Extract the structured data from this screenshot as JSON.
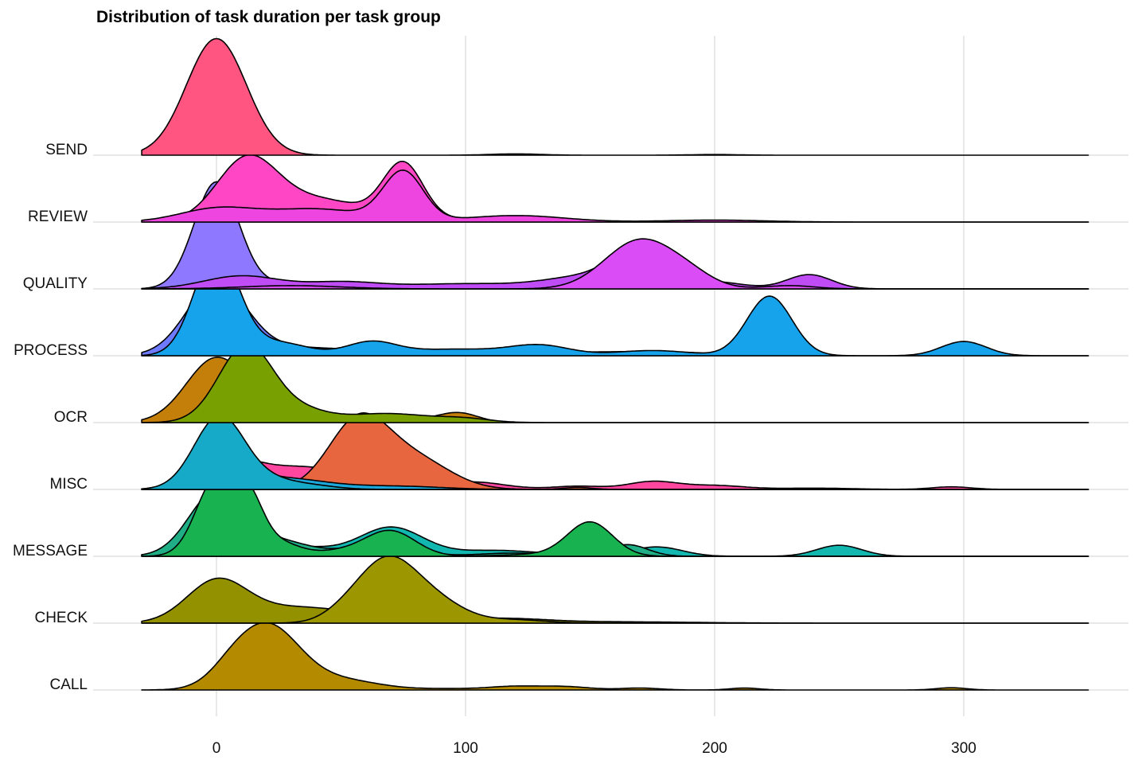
{
  "chart_data": {
    "type": "ridgeline",
    "title": "Distribution of task duration per task group",
    "xlabel": "",
    "ylabel": "",
    "xlim": [
      -30,
      350
    ],
    "x_ticks": [
      0,
      100,
      200,
      300
    ],
    "grid": true,
    "legend": "none",
    "groups": [
      "SEND",
      "REVIEW",
      "QUALITY",
      "PROCESS",
      "OCR",
      "MISC",
      "MESSAGE",
      "CHECK",
      "CALL"
    ],
    "densities": [
      {
        "group": "CALL",
        "color": "#B38A00",
        "components": [
          [
            20,
            13,
            1.0
          ],
          [
            50,
            15,
            0.15
          ],
          [
            5,
            8,
            0.12
          ],
          [
            120,
            10,
            0.05
          ],
          [
            140,
            10,
            0.05
          ],
          [
            170,
            8,
            0.03
          ],
          [
            212,
            6,
            0.03
          ],
          [
            295,
            6,
            0.035
          ],
          [
            95,
            15,
            0.02
          ]
        ]
      },
      {
        "group": "CHECK",
        "color": "#949100",
        "components": [
          [
            0,
            12,
            0.62
          ],
          [
            30,
            20,
            0.2
          ],
          [
            70,
            30,
            0.1
          ],
          [
            120,
            15,
            0.04
          ],
          [
            160,
            30,
            0.02
          ]
        ]
      },
      {
        "group": "CHECK",
        "color": "#9C9700",
        "components": [
          [
            68,
            12,
            0.95
          ],
          [
            88,
            12,
            0.3
          ],
          [
            50,
            8,
            0.08
          ],
          [
            120,
            12,
            0.05
          ]
        ]
      },
      {
        "group": "MESSAGE",
        "color": "#12B8B0",
        "components": [
          [
            0,
            12,
            0.55
          ],
          [
            20,
            12,
            0.15
          ],
          [
            70,
            13,
            0.45
          ],
          [
            40,
            10,
            0.08
          ],
          [
            110,
            15,
            0.08
          ],
          [
            177,
            10,
            0.14
          ],
          [
            250,
            9,
            0.17
          ],
          [
            140,
            20,
            0.03
          ]
        ]
      },
      {
        "group": "MESSAGE",
        "color": "#1FAE85",
        "components": [
          [
            0,
            11,
            1.0
          ],
          [
            25,
            12,
            0.22
          ],
          [
            60,
            15,
            0.1
          ],
          [
            70,
            10,
            0.15
          ],
          [
            120,
            15,
            0.05
          ],
          [
            165,
            8,
            0.18
          ]
        ]
      },
      {
        "group": "MESSAGE",
        "color": "#18B350",
        "components": [
          [
            0,
            8,
            1.2
          ],
          [
            13,
            6,
            0.75
          ],
          [
            25,
            8,
            0.2
          ],
          [
            70,
            10,
            0.38
          ],
          [
            50,
            12,
            0.08
          ],
          [
            150,
            9,
            0.52
          ],
          [
            130,
            15,
            0.03
          ]
        ]
      },
      {
        "group": "MISC",
        "color": "#FF47A0",
        "components": [
          [
            5,
            10,
            0.3
          ],
          [
            25,
            20,
            0.25
          ],
          [
            55,
            25,
            0.18
          ],
          [
            105,
            12,
            0.09
          ],
          [
            145,
            10,
            0.05
          ],
          [
            175,
            10,
            0.12
          ],
          [
            200,
            12,
            0.06
          ],
          [
            240,
            15,
            0.02
          ],
          [
            295,
            8,
            0.04
          ]
        ]
      },
      {
        "group": "MISC",
        "color": "#E8663F",
        "components": [
          [
            57,
            12,
            1.05
          ],
          [
            80,
            14,
            0.45
          ],
          [
            145,
            6,
            0.03
          ]
        ]
      },
      {
        "group": "MISC",
        "color": "#1DA8DC",
        "components": [
          [
            0,
            10,
            0.8
          ],
          [
            25,
            15,
            0.15
          ],
          [
            50,
            20,
            0.05
          ],
          [
            80,
            15,
            0.03
          ]
        ]
      },
      {
        "group": "MISC",
        "color": "#17AAC8",
        "components": [
          [
            1,
            10,
            1.1
          ],
          [
            20,
            12,
            0.15
          ],
          [
            40,
            10,
            0.04
          ]
        ]
      },
      {
        "group": "OCR",
        "color": "#C47E0A",
        "components": [
          [
            0,
            12,
            1.0
          ],
          [
            20,
            8,
            0.2
          ],
          [
            40,
            10,
            0.1
          ],
          [
            97,
            8,
            0.15
          ],
          [
            70,
            12,
            0.08
          ]
        ]
      },
      {
        "group": "OCR",
        "color": "#78A000",
        "components": [
          [
            12,
            11,
            1.2
          ],
          [
            35,
            10,
            0.15
          ],
          [
            68,
            18,
            0.14
          ],
          [
            100,
            10,
            0.05
          ]
        ]
      },
      {
        "group": "PROCESS",
        "color": "#6F7BFF",
        "components": [
          [
            0,
            12,
            1.1
          ],
          [
            30,
            20,
            0.1
          ],
          [
            70,
            30,
            0.05
          ],
          [
            130,
            40,
            0.05
          ],
          [
            180,
            20,
            0.04
          ]
        ]
      },
      {
        "group": "PROCESS",
        "color": "#16A3EB",
        "components": [
          [
            0,
            9,
            1.6
          ],
          [
            25,
            12,
            0.2
          ],
          [
            62,
            10,
            0.2
          ],
          [
            95,
            20,
            0.1
          ],
          [
            130,
            12,
            0.15
          ],
          [
            175,
            15,
            0.08
          ],
          [
            222,
            9,
            0.92
          ],
          [
            300,
            9,
            0.22
          ]
        ]
      },
      {
        "group": "QUALITY",
        "color": "#8E78FF",
        "components": [
          [
            0,
            9,
            1.65
          ],
          [
            30,
            12,
            0.08
          ],
          [
            55,
            15,
            0.06
          ],
          [
            100,
            30,
            0.03
          ]
        ]
      },
      {
        "group": "QUALITY",
        "color": "#C04CF5",
        "components": [
          [
            10,
            15,
            0.2
          ],
          [
            50,
            15,
            0.1
          ],
          [
            100,
            25,
            0.08
          ],
          [
            145,
            15,
            0.15
          ],
          [
            170,
            12,
            0.55
          ],
          [
            200,
            12,
            0.1
          ],
          [
            238,
            9,
            0.22
          ]
        ]
      },
      {
        "group": "QUALITY",
        "color": "#DA4CF5",
        "components": [
          [
            30,
            20,
            0.05
          ],
          [
            170,
            14,
            0.75
          ],
          [
            190,
            10,
            0.15
          ],
          [
            230,
            10,
            0.05
          ]
        ]
      },
      {
        "group": "REVIEW",
        "color": "#FF47C5",
        "components": [
          [
            12,
            12,
            0.9
          ],
          [
            40,
            20,
            0.35
          ],
          [
            75,
            8,
            0.85
          ],
          [
            110,
            20,
            0.05
          ]
        ]
      },
      {
        "group": "REVIEW",
        "color": "#EE45E0",
        "components": [
          [
            0,
            15,
            0.2
          ],
          [
            40,
            20,
            0.2
          ],
          [
            75,
            8,
            0.75
          ],
          [
            120,
            20,
            0.1
          ],
          [
            200,
            20,
            0.03
          ]
        ]
      },
      {
        "group": "SEND",
        "color": "#FF5580",
        "components": [
          [
            0,
            12,
            1.8
          ],
          [
            120,
            10,
            0.02
          ],
          [
            200,
            10,
            0.01
          ]
        ]
      }
    ]
  }
}
